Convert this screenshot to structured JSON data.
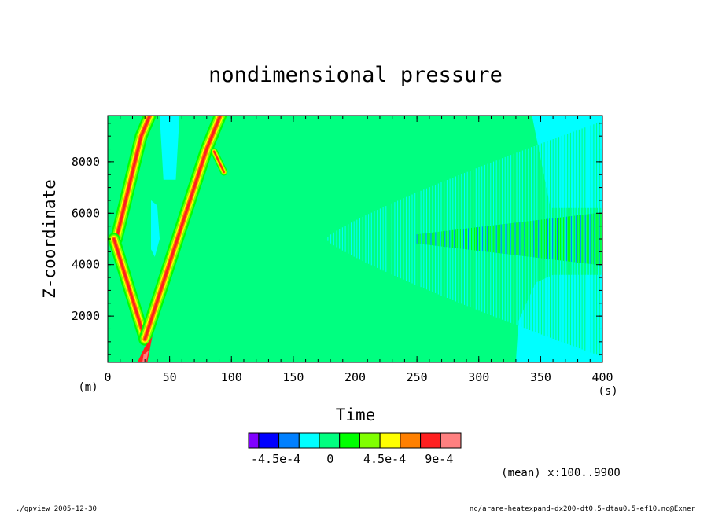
{
  "title": "nondimensional pressure",
  "xlabel": "Time",
  "ylabel": "Z-coordinate",
  "x_unit": "(s)",
  "y_unit": "(m)",
  "mean_note": "(mean) x:100..9900",
  "footer_left": "./gpview  2005-12-30",
  "footer_right": "nc/arare-heatexpand-dx200-dt0.5-dtau0.5-ef10.nc@Exner",
  "colors": {
    "background": "#00ff80",
    "level_colors": [
      "#8000ff",
      "#0000ff",
      "#0080ff",
      "#00ffff",
      "#00ff80",
      "#00ff00",
      "#80ff00",
      "#ffff00",
      "#ff8000",
      "#ff2020",
      "#ff8080"
    ]
  },
  "chart_data": {
    "type": "heatmap",
    "title": "nondimensional pressure",
    "xlabel": "Time",
    "ylabel": "Z-coordinate",
    "x_unit": "(s)",
    "y_unit": "(m)",
    "xlim": [
      0,
      400
    ],
    "ylim": [
      200,
      9800
    ],
    "x_ticks": [
      0,
      50,
      100,
      150,
      200,
      250,
      300,
      350,
      400
    ],
    "y_ticks": [
      2000,
      4000,
      6000,
      8000
    ],
    "legend_placement": "bottom",
    "colorbar": {
      "colors": [
        "#8000ff",
        "#0000ff",
        "#0080ff",
        "#00ffff",
        "#00ff80",
        "#00ff00",
        "#80ff00",
        "#ffff00",
        "#ff8000",
        "#ff2020",
        "#ff8080"
      ],
      "tick_labels": [
        {
          "label": "-4.5e-4",
          "value": -0.00045
        },
        {
          "label": "0",
          "value": 0
        },
        {
          "label": "4.5e-4",
          "value": 0.00045
        },
        {
          "label": "9e-4",
          "value": 0.0009
        }
      ]
    },
    "features": {
      "wave_paths": [
        {
          "name": "upper-left-outer",
          "x": [
            7,
            27,
            34
          ],
          "y": [
            5000,
            9000,
            9800
          ],
          "width": 5.8
        },
        {
          "name": "lower-left",
          "x": [
            5,
            30
          ],
          "y": [
            5000,
            1100
          ],
          "width": 5.5
        },
        {
          "name": "reflected-upward",
          "x": [
            30,
            80,
            91
          ],
          "y": [
            1100,
            8500,
            9800
          ],
          "width": 5.8
        },
        {
          "name": "right-tail",
          "x": [
            86,
            94
          ],
          "y": [
            8400,
            7600
          ],
          "width": 3.2
        }
      ],
      "cyan_regions": [
        {
          "x": [
            42,
            58,
            55,
            45
          ],
          "y": [
            9800,
            9800,
            7300,
            7300
          ]
        },
        {
          "x": [
            35,
            40,
            42,
            38,
            35
          ],
          "y": [
            6500,
            6300,
            5000,
            4300,
            4600
          ]
        },
        {
          "x": [
            343,
            400,
            400,
            358
          ],
          "y": [
            9800,
            9800,
            6200,
            6200
          ]
        },
        {
          "x": [
            330,
            332,
            346,
            360,
            400,
            400
          ],
          "y": [
            200,
            1800,
            3300,
            3600,
            3600,
            200
          ]
        }
      ],
      "oscillation_band": {
        "x_start": 178,
        "x_end": 400,
        "center_y": 5000,
        "max_half_height": 4500,
        "dense_start": 250,
        "dense_end": 400
      }
    }
  }
}
